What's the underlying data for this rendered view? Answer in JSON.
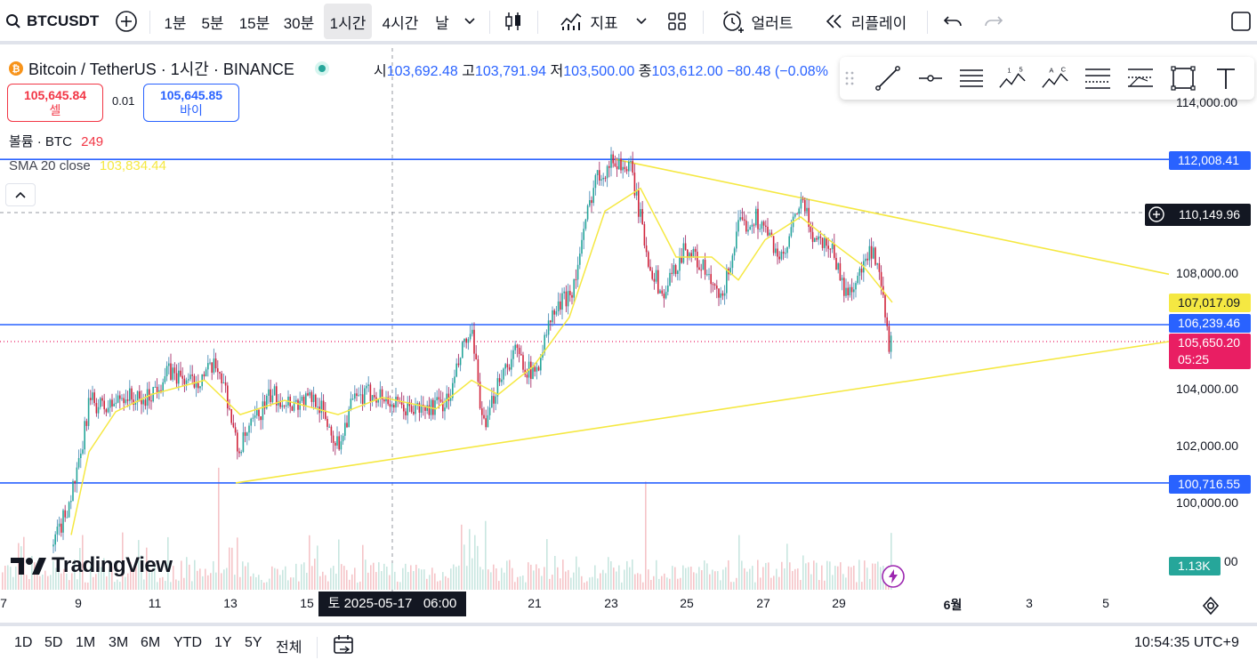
{
  "toolbar": {
    "symbol": "BTCUSDT",
    "intervals": [
      "1분",
      "5분",
      "15분",
      "30분",
      "1시간",
      "4시간",
      "날"
    ],
    "active_interval": "1시간",
    "indicators_label": "지표",
    "alert_label": "얼러트",
    "replay_label": "리플레이"
  },
  "legend": {
    "title": "Bitcoin / TetherUS · 1시간 · BINANCE",
    "open_key": "시",
    "open": "103,692.48",
    "high_key": "고",
    "high": "103,791.94",
    "low_key": "저",
    "low": "103,500.00",
    "close_key": "종",
    "close": "103,612.00",
    "change": "−80.48 (−0.08%",
    "sell_price": "105,645.84",
    "sell_label": "셀",
    "spread": "0.01",
    "buy_price": "105,645.85",
    "buy_label": "바이",
    "volume_label": "볼륨 · BTC",
    "volume_value": "249",
    "sma_label": "SMA 20 close",
    "sma_value": "103,834.44"
  },
  "price_axis": {
    "ticks": [
      "114,000.00",
      "108,000.00",
      "104,000.00",
      "102,000.00",
      "100,000.00",
      "00"
    ],
    "labels": {
      "resistance_top": "112,008.41",
      "crosshair": "110,149.96",
      "sma": "107,017.09",
      "mid_line": "106,239.46",
      "last_price": "105,650.20",
      "countdown": "05:25",
      "support": "100,716.55",
      "volume": "1.13K"
    },
    "colors": {
      "blue": "#2962ff",
      "yellow": "#f5e842",
      "red": "#e91e63",
      "teal": "#26a69a",
      "black": "#131722"
    }
  },
  "time_axis": {
    "labels": [
      "7",
      "9",
      "11",
      "13",
      "15",
      "21",
      "23",
      "25",
      "27",
      "29",
      "6월",
      "3",
      "5"
    ],
    "crosshair_label": "토 2025-05-17   06:00"
  },
  "footer": {
    "ranges": [
      "1D",
      "5D",
      "1M",
      "3M",
      "6M",
      "YTD",
      "1Y",
      "5Y",
      "전체"
    ],
    "clock": "10:54:35 UTC+9"
  },
  "branding": {
    "logo_text": "TradingView"
  },
  "chart_data": {
    "type": "line",
    "title": "Bitcoin / TetherUS · 1시간 · BINANCE",
    "x_ticks": [
      "7",
      "9",
      "11",
      "13",
      "15",
      "21",
      "23",
      "25",
      "27",
      "29",
      "6월",
      "3",
      "5"
    ],
    "ylim": [
      99200,
      115000
    ],
    "y_ticks": [
      114000,
      108000,
      104000,
      102000,
      100000
    ],
    "horizontal_lines": [
      112008.41,
      106239.46,
      100716.55
    ],
    "price_path": [
      {
        "x": 60,
        "y": 98500
      },
      {
        "x": 75,
        "y": 99800
      },
      {
        "x": 90,
        "y": 101400
      },
      {
        "x": 100,
        "y": 103600
      },
      {
        "x": 120,
        "y": 103300
      },
      {
        "x": 140,
        "y": 103800
      },
      {
        "x": 160,
        "y": 103500
      },
      {
        "x": 190,
        "y": 104600
      },
      {
        "x": 215,
        "y": 104200
      },
      {
        "x": 245,
        "y": 104800
      },
      {
        "x": 255,
        "y": 103800
      },
      {
        "x": 267,
        "y": 101800
      },
      {
        "x": 285,
        "y": 102800
      },
      {
        "x": 305,
        "y": 103800
      },
      {
        "x": 330,
        "y": 103500
      },
      {
        "x": 355,
        "y": 103700
      },
      {
        "x": 380,
        "y": 102000
      },
      {
        "x": 395,
        "y": 103500
      },
      {
        "x": 420,
        "y": 103900
      },
      {
        "x": 450,
        "y": 103300
      },
      {
        "x": 480,
        "y": 103300
      },
      {
        "x": 505,
        "y": 103600
      },
      {
        "x": 520,
        "y": 105400
      },
      {
        "x": 530,
        "y": 105900
      },
      {
        "x": 545,
        "y": 102400
      },
      {
        "x": 560,
        "y": 104400
      },
      {
        "x": 580,
        "y": 105300
      },
      {
        "x": 600,
        "y": 104400
      },
      {
        "x": 620,
        "y": 106500
      },
      {
        "x": 645,
        "y": 107600
      },
      {
        "x": 668,
        "y": 111300
      },
      {
        "x": 690,
        "y": 112000
      },
      {
        "x": 710,
        "y": 111600
      },
      {
        "x": 728,
        "y": 108600
      },
      {
        "x": 745,
        "y": 107200
      },
      {
        "x": 770,
        "y": 109000
      },
      {
        "x": 790,
        "y": 108200
      },
      {
        "x": 810,
        "y": 107000
      },
      {
        "x": 830,
        "y": 109600
      },
      {
        "x": 850,
        "y": 110000
      },
      {
        "x": 865,
        "y": 109300
      },
      {
        "x": 880,
        "y": 108400
      },
      {
        "x": 900,
        "y": 110600
      },
      {
        "x": 915,
        "y": 109300
      },
      {
        "x": 935,
        "y": 109000
      },
      {
        "x": 950,
        "y": 107300
      },
      {
        "x": 965,
        "y": 107900
      },
      {
        "x": 980,
        "y": 108800
      },
      {
        "x": 990,
        "y": 107600
      },
      {
        "x": 1000,
        "y": 105400
      },
      {
        "x": 1003,
        "y": 105650
      }
    ],
    "sma_path": [
      {
        "x": 80,
        "y": 98900
      },
      {
        "x": 100,
        "y": 101800
      },
      {
        "x": 130,
        "y": 103200
      },
      {
        "x": 170,
        "y": 103800
      },
      {
        "x": 230,
        "y": 104300
      },
      {
        "x": 270,
        "y": 103100
      },
      {
        "x": 320,
        "y": 103600
      },
      {
        "x": 380,
        "y": 103100
      },
      {
        "x": 430,
        "y": 103700
      },
      {
        "x": 490,
        "y": 103300
      },
      {
        "x": 530,
        "y": 104300
      },
      {
        "x": 560,
        "y": 103800
      },
      {
        "x": 600,
        "y": 104800
      },
      {
        "x": 640,
        "y": 106500
      },
      {
        "x": 680,
        "y": 110200
      },
      {
        "x": 720,
        "y": 111000
      },
      {
        "x": 760,
        "y": 108600
      },
      {
        "x": 800,
        "y": 108600
      },
      {
        "x": 830,
        "y": 107800
      },
      {
        "x": 860,
        "y": 109200
      },
      {
        "x": 900,
        "y": 110000
      },
      {
        "x": 940,
        "y": 109000
      },
      {
        "x": 970,
        "y": 108300
      },
      {
        "x": 1003,
        "y": 107017.09
      }
    ],
    "trendlines": [
      {
        "from": {
          "x": 692,
          "y": 112008.41
        },
        "to": {
          "x": 1314,
          "y": 108000
        }
      },
      {
        "from": {
          "x": 265,
          "y": 100716.55
        },
        "to": {
          "x": 1314,
          "y": 105650.2
        }
      }
    ]
  }
}
